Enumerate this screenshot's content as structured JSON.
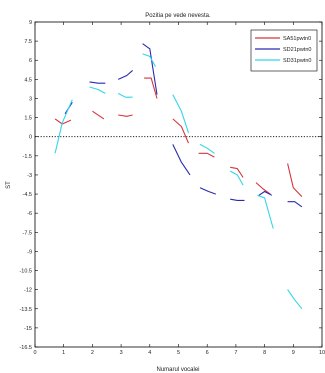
{
  "chart_data": {
    "type": "line",
    "title": "Pozitia pe vede nevesta.",
    "xlabel": "Numarul vocalei",
    "ylabel": "ST",
    "xlim": [
      0,
      10
    ],
    "ylim": [
      -16.5,
      9
    ],
    "xticks": [
      0,
      1,
      2,
      3,
      4,
      5,
      6,
      7,
      8,
      9,
      10
    ],
    "yticks": [
      9,
      7.5,
      6,
      4.5,
      3,
      1.5,
      0,
      -1.5,
      -3,
      -4.5,
      -6,
      -7.5,
      -9,
      -10.5,
      -12,
      -13.5,
      -15,
      -16.5
    ],
    "reference_line": {
      "y": 0,
      "style": "dotted"
    },
    "legend_position": "top-right",
    "series": [
      {
        "name": "SA51pwtn0",
        "color": "#d8343c",
        "segments": [
          [
            [
              0.7,
              1.4
            ],
            [
              0.95,
              1.0
            ],
            [
              1.25,
              1.3
            ]
          ],
          [
            [
              2.0,
              2.0
            ],
            [
              2.4,
              1.4
            ]
          ],
          [
            [
              2.9,
              1.7
            ],
            [
              3.2,
              1.6
            ],
            [
              3.4,
              1.7
            ]
          ],
          [
            [
              3.8,
              4.6
            ],
            [
              4.05,
              4.6
            ],
            [
              4.25,
              3.0
            ]
          ],
          [
            [
              4.8,
              1.4
            ],
            [
              5.1,
              0.8
            ],
            [
              5.35,
              -0.5
            ]
          ],
          [
            [
              5.7,
              -1.3
            ],
            [
              6.0,
              -1.3
            ],
            [
              6.25,
              -1.6
            ]
          ],
          [
            [
              6.8,
              -2.4
            ],
            [
              7.05,
              -2.5
            ],
            [
              7.25,
              -3.2
            ]
          ],
          [
            [
              7.7,
              -3.6
            ],
            [
              7.95,
              -4.1
            ],
            [
              8.2,
              -4.5
            ]
          ],
          [
            [
              8.8,
              -2.1
            ],
            [
              9.0,
              -4.0
            ],
            [
              9.3,
              -4.7
            ]
          ]
        ]
      },
      {
        "name": "SD21pwtn0",
        "color": "#2a2ab0",
        "segments": [
          [
            [
              1.05,
              1.8
            ],
            [
              1.3,
              2.7
            ]
          ],
          [
            [
              1.9,
              4.3
            ],
            [
              2.2,
              4.2
            ],
            [
              2.45,
              4.2
            ]
          ],
          [
            [
              2.9,
              4.5
            ],
            [
              3.2,
              4.8
            ],
            [
              3.4,
              5.2
            ]
          ],
          [
            [
              3.75,
              7.3
            ],
            [
              4.0,
              6.9
            ],
            [
              4.25,
              3.3
            ]
          ],
          [
            [
              4.8,
              -0.6
            ],
            [
              5.1,
              -2.0
            ],
            [
              5.4,
              -3.0
            ]
          ],
          [
            [
              5.75,
              -4.0
            ],
            [
              6.05,
              -4.3
            ],
            [
              6.3,
              -4.5
            ]
          ],
          [
            [
              6.8,
              -4.9
            ],
            [
              7.05,
              -5.0
            ],
            [
              7.3,
              -5.0
            ]
          ],
          [
            [
              7.8,
              -4.6
            ],
            [
              8.0,
              -4.3
            ],
            [
              8.25,
              -4.6
            ]
          ],
          [
            [
              8.8,
              -5.1
            ],
            [
              9.05,
              -5.1
            ],
            [
              9.3,
              -5.5
            ]
          ]
        ]
      },
      {
        "name": "SD31pwtn0",
        "color": "#32d6e8",
        "segments": [
          [
            [
              0.7,
              -1.3
            ],
            [
              0.95,
              1.1
            ],
            [
              1.3,
              2.9
            ]
          ],
          [
            [
              1.9,
              3.9
            ],
            [
              2.2,
              3.7
            ],
            [
              2.45,
              3.4
            ]
          ],
          [
            [
              2.9,
              3.4
            ],
            [
              3.15,
              3.1
            ],
            [
              3.4,
              3.1
            ]
          ],
          [
            [
              3.75,
              6.5
            ],
            [
              4.0,
              6.3
            ],
            [
              4.2,
              5.5
            ]
          ],
          [
            [
              4.8,
              3.3
            ],
            [
              5.1,
              2.0
            ],
            [
              5.35,
              0.3
            ]
          ],
          [
            [
              5.75,
              -0.6
            ],
            [
              6.0,
              -0.9
            ],
            [
              6.25,
              -1.3
            ]
          ],
          [
            [
              6.8,
              -2.7
            ],
            [
              7.05,
              -3.0
            ],
            [
              7.25,
              -3.8
            ]
          ],
          [
            [
              7.75,
              -4.6
            ],
            [
              8.0,
              -4.8
            ],
            [
              8.3,
              -7.2
            ]
          ],
          [
            [
              8.8,
              -12.0
            ],
            [
              9.05,
              -12.8
            ],
            [
              9.3,
              -13.5
            ]
          ]
        ]
      }
    ]
  }
}
